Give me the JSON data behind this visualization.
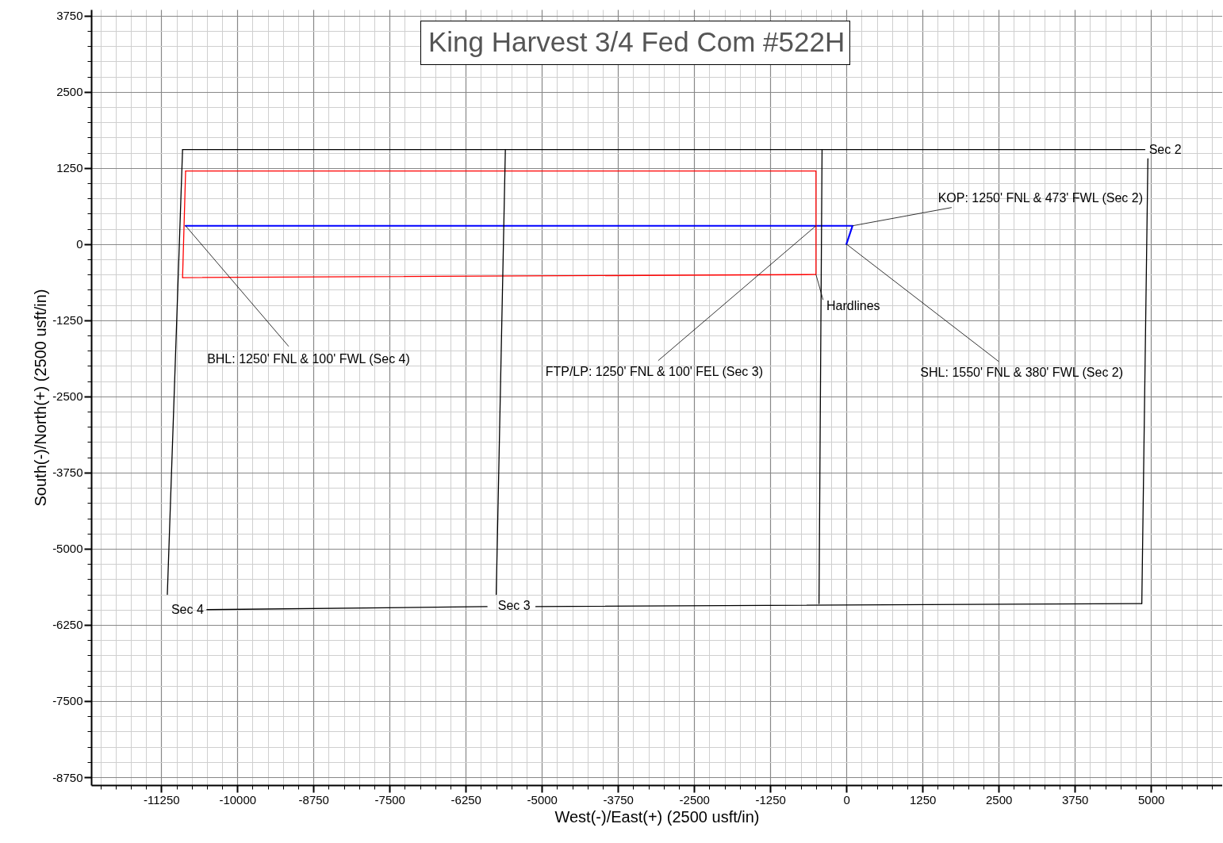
{
  "chart_data": {
    "type": "line",
    "title": "King Harvest 3/4 Fed Com #522H",
    "xlabel": "West(-)/East(+) (2500 usft/in)",
    "ylabel": "South(-)/North(+)  (2500 usft/in)",
    "xlim": [
      -12400,
      6170
    ],
    "ylim": [
      -8880,
      3850
    ],
    "xticks": [
      -11250,
      -10000,
      -8750,
      -7500,
      -6250,
      -5000,
      -3750,
      -2500,
      -1250,
      0,
      1250,
      2500,
      3750,
      5000
    ],
    "yticks": [
      3750,
      2500,
      1250,
      0,
      -1250,
      -2500,
      -3750,
      -5000,
      -6250,
      -7500,
      -8750
    ],
    "grid": true,
    "series": [
      {
        "color": "#0000ff",
        "x": [
          0,
          100,
          -500,
          -10850
        ],
        "values": [
          0,
          300,
          300,
          300
        ]
      },
      {
        "color": "#ff0000",
        "x": [
          -10850,
          -500,
          -500,
          -10900
        ],
        "values": [
          1200,
          1200,
          -500,
          -550
        ]
      },
      {
        "color": "#ff0000",
        "x": [
          -10900,
          -10850
        ],
        "values": [
          -550,
          1200
        ]
      },
      {
        "color": "#000000",
        "x": [
          -10900,
          4900
        ],
        "values": [
          1550,
          1550
        ]
      },
      {
        "color": "#000000",
        "x": [
          -10900,
          -11150
        ],
        "values": [
          1550,
          -5750
        ]
      },
      {
        "color": "#000000",
        "x": [
          -5600,
          -5750
        ],
        "values": [
          1550,
          -5750
        ]
      },
      {
        "color": "#000000",
        "x": [
          -400,
          -450
        ],
        "values": [
          1550,
          -5900
        ]
      },
      {
        "color": "#000000",
        "x": [
          4950,
          4850
        ],
        "values": [
          1400,
          -5900
        ]
      },
      {
        "color": "#000000",
        "x": [
          4850,
          -5100
        ],
        "values": [
          -5900,
          -5950
        ]
      },
      {
        "color": "#000000",
        "x": [
          -5900,
          -10500
        ],
        "values": [
          -5950,
          -6000
        ]
      }
    ],
    "annotations": [
      {
        "text": "BHL: 1250' FNL & 100' FWL (Sec 4)",
        "x": -10850,
        "y": 300
      },
      {
        "text": "FTP/LP: 1250' FNL & 100' FEL (Sec 3)",
        "x": -500,
        "y": 300
      },
      {
        "text": "KOP: 1250' FNL & 473' FWL  (Sec 2)",
        "x": 100,
        "y": 300
      },
      {
        "text": "SHL: 1550' FNL & 380' FWL  (Sec 2)",
        "x": 0,
        "y": 0
      },
      {
        "text": "Hardlines",
        "x": -500,
        "y": -500
      },
      "Sec 2",
      "Sec 3",
      "Sec 4"
    ]
  }
}
